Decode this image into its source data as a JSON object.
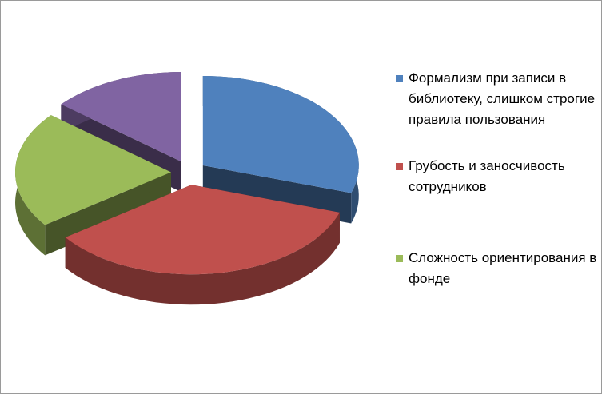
{
  "chart_data": {
    "type": "pie3d",
    "categories": [
      "Формализм при записи в библиотеку, слишком строгие правила пользования",
      "Грубость и заносчивость сотрудников",
      "Сложность ориентирования в фонде",
      null
    ],
    "values": [
      30,
      35,
      21,
      14
    ],
    "colors": [
      "#4f81bd",
      "#c0504d",
      "#9bbb59",
      "#8064a2"
    ],
    "legend": "right"
  }
}
